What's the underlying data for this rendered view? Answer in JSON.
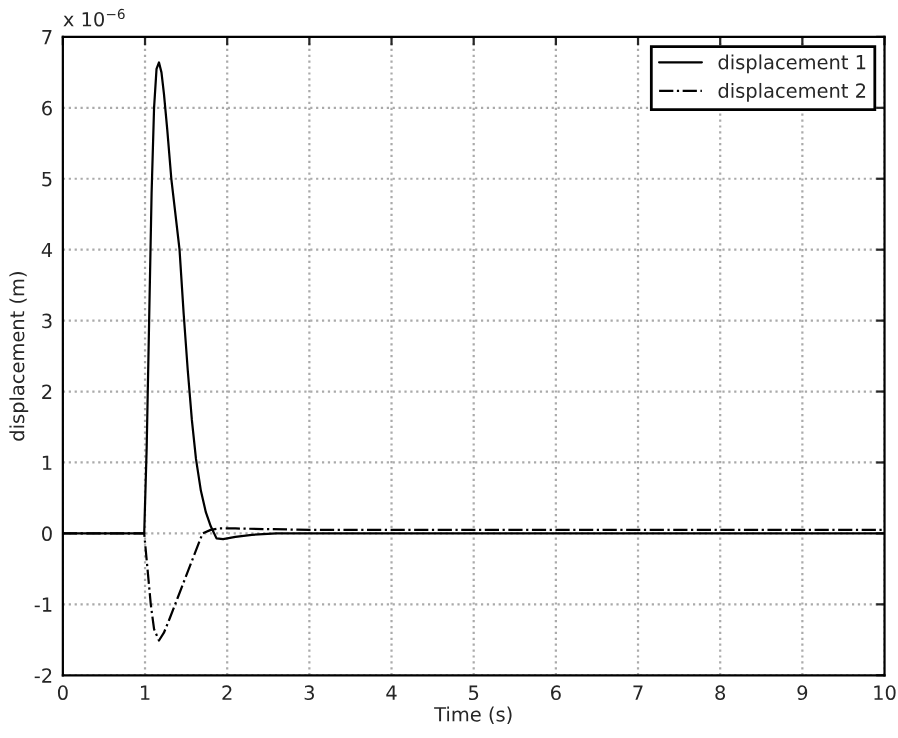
{
  "chart_data": {
    "type": "line",
    "xlabel": "Time (s)",
    "ylabel": "displacement (m)",
    "annotations": [
      "x 10$^{−6}$"
    ],
    "xlim": [
      0,
      10
    ],
    "xticks": [
      0,
      1,
      2,
      3,
      4,
      5,
      6,
      7,
      8,
      9,
      10
    ],
    "ylim": [
      -2,
      7
    ],
    "yticks": [
      -2,
      -1,
      0,
      1,
      2,
      3,
      4,
      5,
      6,
      7
    ],
    "grid": true,
    "legend": "top right",
    "series": [
      {
        "name": "displacement 1",
        "color": "#000000",
        "line_style": "solid",
        "x": [
          0,
          0.99,
          1.02,
          1.05,
          1.08,
          1.11,
          1.14,
          1.17,
          1.2,
          1.23,
          1.27,
          1.32,
          1.37,
          1.42,
          1.47,
          1.52,
          1.57,
          1.62,
          1.68,
          1.74,
          1.8,
          1.87,
          1.95,
          2.1,
          2.3,
          2.6,
          3,
          4,
          6,
          8,
          10
        ],
        "values": [
          0,
          0,
          1.2,
          3.0,
          4.8,
          6.0,
          6.55,
          6.64,
          6.5,
          6.2,
          5.7,
          5.0,
          4.5,
          4.0,
          3.1,
          2.3,
          1.6,
          1.05,
          0.6,
          0.3,
          0.1,
          -0.07,
          -0.08,
          -0.05,
          -0.02,
          0,
          0,
          0,
          0,
          0,
          0
        ]
      },
      {
        "name": "displacement 2",
        "color": "#000000",
        "line_style": "dashdot",
        "x": [
          0,
          0.99,
          1.03,
          1.07,
          1.11,
          1.17,
          1.23,
          1.3,
          1.4,
          1.5,
          1.6,
          1.7,
          1.8,
          1.9,
          2.1,
          2.5,
          3,
          4,
          6,
          8,
          10
        ],
        "values": [
          0,
          0,
          -0.5,
          -1.0,
          -1.35,
          -1.51,
          -1.4,
          -1.2,
          -0.9,
          -0.6,
          -0.3,
          0,
          0.05,
          0.07,
          0.07,
          0.06,
          0.05,
          0.05,
          0.05,
          0.05,
          0.05
        ]
      }
    ]
  }
}
